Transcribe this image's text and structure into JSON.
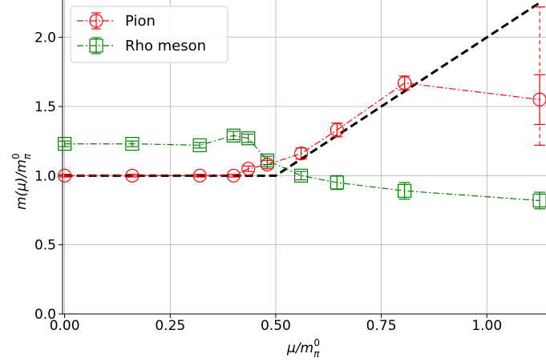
{
  "chart_data": {
    "type": "scatter",
    "xlabel": "μ/m_π^0",
    "ylabel": "m(μ)/m_π^0",
    "xlim": [
      -0.005,
      1.14
    ],
    "ylim": [
      0.0,
      2.27
    ],
    "x_ticks": [
      "0.00",
      "0.25",
      "0.50",
      "0.75",
      "1.00"
    ],
    "y_ticks": [
      "0.0",
      "0.5",
      "1.0",
      "1.5",
      "2.0"
    ],
    "grid": true,
    "legend_position": "top-left",
    "series": [
      {
        "name": "Pion",
        "color": "#ff0000",
        "marker": "circle",
        "linestyle": "dash-dot",
        "points": [
          {
            "x": 0.0,
            "y": 1.0,
            "err": 0.01
          },
          {
            "x": 0.16,
            "y": 1.0,
            "err": 0.01
          },
          {
            "x": 0.32,
            "y": 1.0,
            "err": 0.01
          },
          {
            "x": 0.4,
            "y": 1.0,
            "err": 0.01
          },
          {
            "x": 0.435,
            "y": 1.05,
            "err": 0.02
          },
          {
            "x": 0.48,
            "y": 1.08,
            "err": 0.03
          },
          {
            "x": 0.56,
            "y": 1.16,
            "err": 0.04
          },
          {
            "x": 0.645,
            "y": 1.33,
            "err": 0.05
          },
          {
            "x": 0.805,
            "y": 1.67,
            "err": 0.05
          },
          {
            "x": 1.125,
            "y": 1.55,
            "err": 0.18
          }
        ]
      },
      {
        "name": "Rho meson",
        "color": "#008000",
        "marker": "square",
        "linestyle": "dash-dot",
        "points": [
          {
            "x": 0.0,
            "y": 1.23,
            "err": 0.02
          },
          {
            "x": 0.16,
            "y": 1.23,
            "err": 0.02
          },
          {
            "x": 0.32,
            "y": 1.22,
            "err": 0.02
          },
          {
            "x": 0.4,
            "y": 1.29,
            "err": 0.03
          },
          {
            "x": 0.435,
            "y": 1.27,
            "err": 0.03
          },
          {
            "x": 0.48,
            "y": 1.11,
            "err": 0.03
          },
          {
            "x": 0.56,
            "y": 1.0,
            "err": 0.03
          },
          {
            "x": 0.645,
            "y": 0.95,
            "err": 0.05
          },
          {
            "x": 0.805,
            "y": 0.89,
            "err": 0.06
          },
          {
            "x": 1.125,
            "y": 0.82,
            "err": 0.06
          }
        ]
      }
    ],
    "reference_line": {
      "color": "#000000",
      "linestyle": "dashed",
      "points": [
        {
          "x": 0.0,
          "y": 1.0
        },
        {
          "x": 0.5,
          "y": 1.0
        },
        {
          "x": 1.125,
          "y": 2.25
        }
      ]
    },
    "extra_errorbar": {
      "x": 1.125,
      "low": 1.22,
      "high": 2.22,
      "color": "#ff0000",
      "linestyle": "dashed"
    }
  }
}
